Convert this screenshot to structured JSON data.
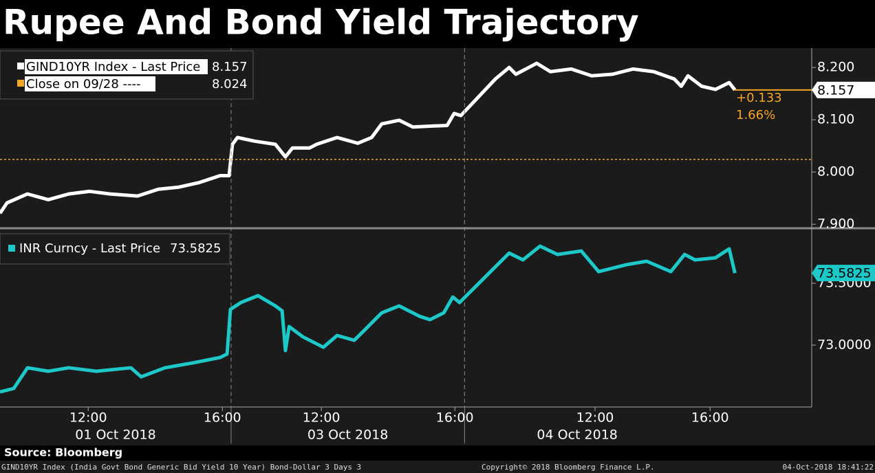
{
  "title": "Rupee And Bond Yield Trajectory",
  "source": "Source: Bloomberg",
  "footer_left": "GIND10YR Index (India Govt Bond Generic Bid Yield 10 Year) Bond-Dollar 3 Days 3",
  "footer_center": "Copyright© 2018 Bloomberg Finance L.P.",
  "footer_right": "04-Oct-2018 18:41:22",
  "chart_data": [
    {
      "type": "line",
      "series": [
        {
          "name": "GIND10YR Index - Last Price",
          "color": "#ffffff",
          "x": [
            0,
            0.21,
            0.82,
            1.44,
            2.05,
            2.67,
            3.28,
            4.1,
            4.72,
            5.33,
            5.95,
            6.56,
            6.83,
            6.93,
            7.08,
            7.59,
            8.21,
            8.51,
            8.72,
            9.23,
            9.44,
            10.05,
            10.67,
            11.08,
            11.38,
            11.9,
            12.31,
            12.92,
            13.33,
            13.54,
            13.74,
            14.77,
            15.18,
            15.38,
            16.0,
            16.41,
            17.03,
            17.64,
            18.26,
            18.87,
            19.49,
            20.1,
            20.31,
            20.51,
            20.92,
            21.33,
            21.74,
            21.91
          ],
          "values": [
            7.921,
            7.941,
            7.958,
            7.947,
            7.958,
            7.963,
            7.958,
            7.954,
            7.967,
            7.971,
            7.98,
            7.993,
            7.993,
            8.053,
            8.066,
            8.059,
            8.053,
            8.029,
            8.046,
            8.046,
            8.053,
            8.066,
            8.055,
            8.066,
            8.092,
            8.099,
            8.086,
            8.088,
            8.089,
            8.112,
            8.108,
            8.178,
            8.2,
            8.187,
            8.208,
            8.192,
            8.197,
            8.184,
            8.187,
            8.197,
            8.192,
            8.178,
            8.164,
            8.184,
            8.164,
            8.158,
            8.171,
            8.157
          ]
        }
      ],
      "reference": {
        "name": "Close on 09/28 ----",
        "color": "#f5a623",
        "value": 8.024
      },
      "annotations": [
        "+0.133",
        "1.66%"
      ],
      "xlim": [
        0,
        24.2
      ],
      "ylim": [
        7.895,
        8.237
      ],
      "yticks": [
        {
          "value": 8.2,
          "label": "8.200"
        },
        {
          "value": 8.1,
          "label": "8.100"
        },
        {
          "value": 8.0,
          "label": "8.000"
        },
        {
          "value": 7.9,
          "label": "7.900"
        }
      ]
    },
    {
      "type": "line",
      "series": [
        {
          "name": "INR Curncy - Last Price",
          "color": "#1ec8c8",
          "x": [
            0,
            0.41,
            0.82,
            1.44,
            2.05,
            2.87,
            3.9,
            4.21,
            4.92,
            5.74,
            6.56,
            6.77,
            6.87,
            7.18,
            7.69,
            8.21,
            8.41,
            8.51,
            8.62,
            9.03,
            9.64,
            10.05,
            10.56,
            10.87,
            11.38,
            11.9,
            12.51,
            12.82,
            13.23,
            13.5,
            13.7,
            15.18,
            15.59,
            16.1,
            16.62,
            17.33,
            17.85,
            18.67,
            19.28,
            20.0,
            20.41,
            20.72,
            21.33,
            21.74,
            21.91
          ],
          "values": [
            72.622,
            72.65,
            72.817,
            72.789,
            72.817,
            72.789,
            72.817,
            72.744,
            72.817,
            72.856,
            72.9,
            72.928,
            73.289,
            73.344,
            73.4,
            73.317,
            73.278,
            72.956,
            73.15,
            73.067,
            72.983,
            73.078,
            73.039,
            73.122,
            73.261,
            73.317,
            73.233,
            73.206,
            73.261,
            73.389,
            73.344,
            73.744,
            73.689,
            73.8,
            73.733,
            73.761,
            73.594,
            73.65,
            73.678,
            73.594,
            73.733,
            73.689,
            73.706,
            73.778,
            73.5825
          ]
        }
      ],
      "xlim": [
        0,
        24.2
      ],
      "ylim": [
        72.5,
        73.928
      ],
      "yticks": [
        {
          "value": 73.5,
          "label": "73.5000"
        },
        {
          "value": 73.0,
          "label": "73.0000"
        }
      ],
      "xticks": [
        {
          "value": 2.63,
          "label": "12:00"
        },
        {
          "value": 6.63,
          "label": "16:00"
        },
        {
          "value": 9.58,
          "label": "12:00"
        },
        {
          "value": 13.56,
          "label": "16:00"
        },
        {
          "value": 17.74,
          "label": "12:00"
        },
        {
          "value": 21.17,
          "label": "16:00"
        }
      ],
      "day_breaks": [
        6.89,
        13.85
      ],
      "day_labels": [
        "01 Oct 2018",
        "03 Oct 2018",
        "04 Oct 2018"
      ]
    }
  ]
}
